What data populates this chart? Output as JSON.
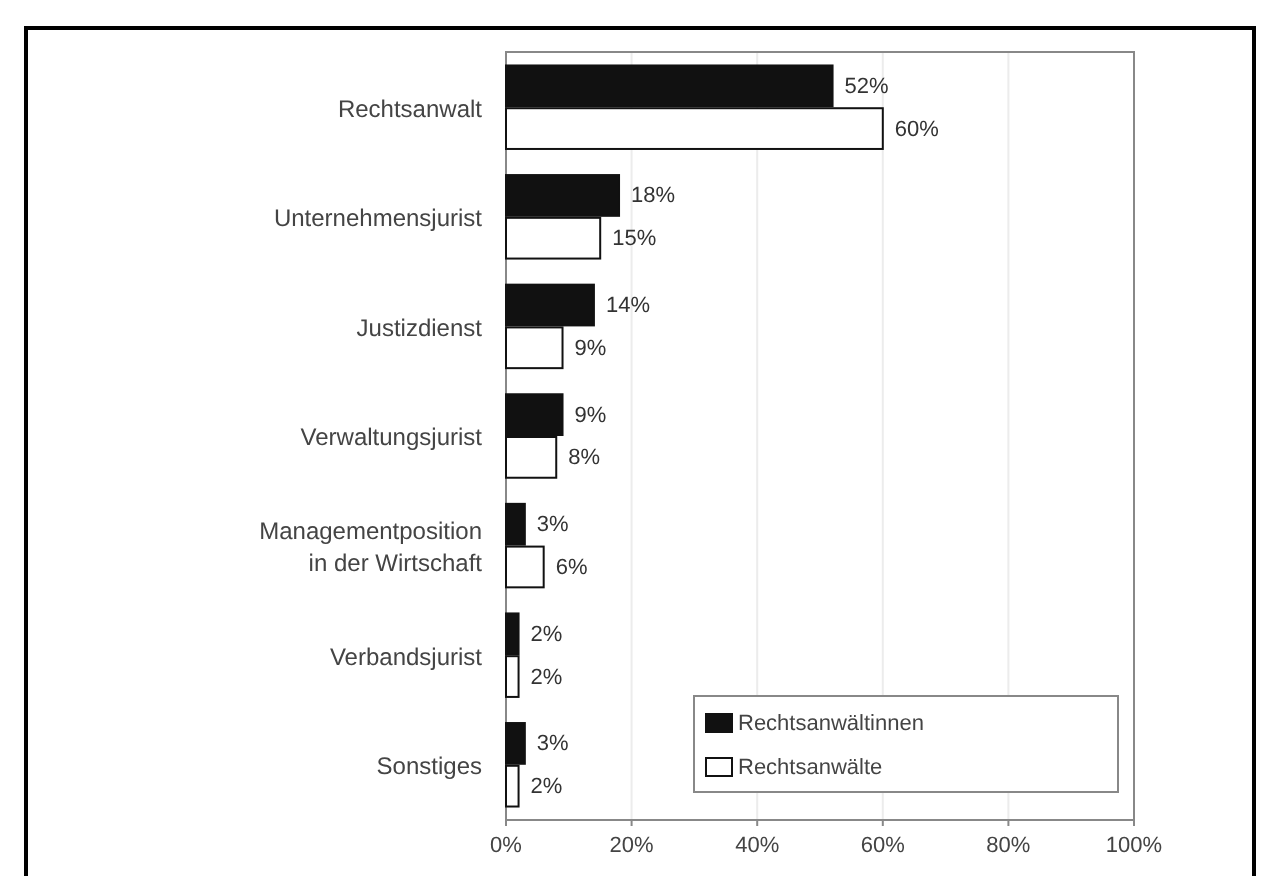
{
  "chart_data": {
    "type": "bar",
    "orientation": "horizontal",
    "categories": [
      "Rechtsanwalt",
      "Unternehmensjurist",
      "Justizdienst",
      "Verwaltungsjurist",
      "Managementposition in der Wirtschaft",
      "Verbandsjurist",
      "Sonstiges"
    ],
    "series": [
      {
        "name": "Rechtsanwältinnen",
        "color": "#111111",
        "values": [
          52,
          18,
          14,
          9,
          3,
          2,
          3
        ],
        "value_labels": [
          "52%",
          "18%",
          "14%",
          "9%",
          "3%",
          "2%",
          "3%"
        ]
      },
      {
        "name": "Rechtsanwälte",
        "color": "#ffffff",
        "values": [
          60,
          15,
          9,
          8,
          6,
          2,
          2
        ],
        "value_labels": [
          "60%",
          "15%",
          "9%",
          "8%",
          "6%",
          "2%",
          "2%"
        ]
      }
    ],
    "xlim": [
      0,
      100
    ],
    "xticks": [
      {
        "value": 0,
        "label": "0%"
      },
      {
        "value": 20,
        "label": "20%"
      },
      {
        "value": 40,
        "label": "40%"
      },
      {
        "value": 60,
        "label": "60%"
      },
      {
        "value": 80,
        "label": "80%"
      },
      {
        "value": 100,
        "label": "100%"
      }
    ],
    "grid": "x",
    "legend": "bottom right"
  }
}
